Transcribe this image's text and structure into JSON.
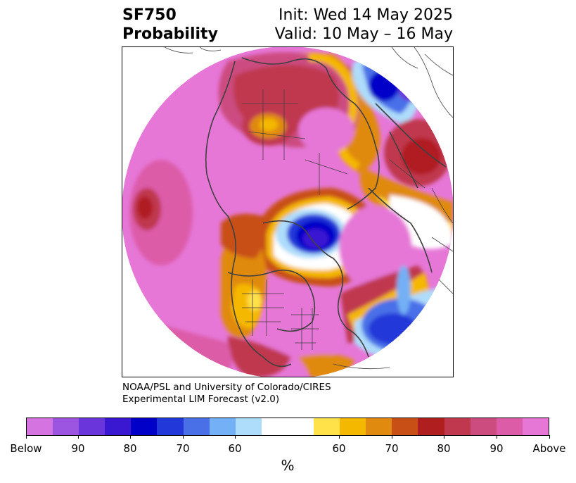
{
  "title": {
    "left_line1": "SF750",
    "left_line2": "Probability",
    "right_line1": "Init: Wed 14 May 2025",
    "right_line2": "Valid: 10 May – 16 May"
  },
  "credit": {
    "line1": "NOAA/PSL and University of Colorado/CIRES",
    "line2": "Experimental LIM Forecast (v2.0)"
  },
  "colorbar": {
    "unit_label": "%",
    "colors": [
      "#d574e0",
      "#9b55e0",
      "#6a35da",
      "#3a18d2",
      "#0000c8",
      "#2338d8",
      "#4a70e8",
      "#73b0f5",
      "#aedcfb",
      "#ffffff",
      "#ffffff",
      "#ffe14a",
      "#f5b800",
      "#e08a10",
      "#c85016",
      "#b01e20",
      "#c0384e",
      "#cc4c80",
      "#dc5ca8",
      "#e677d7"
    ],
    "ticks": [
      {
        "label": "Below"
      },
      {
        "label": "90"
      },
      {
        "label": "80"
      },
      {
        "label": "70"
      },
      {
        "label": "60"
      },
      {
        "label": "60"
      },
      {
        "label": "70"
      },
      {
        "label": "80"
      },
      {
        "label": "90"
      },
      {
        "label": "Above"
      }
    ]
  },
  "map": {
    "projection": "north-polar-stereographic",
    "colors": {
      "above_high": "#e677d7",
      "above_90": "#dc5ca8",
      "above_85": "#cc4c80",
      "above_80": "#c0384e",
      "above_75": "#b01e20",
      "above_70": "#c85016",
      "above_65": "#e08a10",
      "above_60": "#f5b800",
      "above_55": "#ffe14a",
      "below_55": "#aedcfb",
      "below_60": "#73b0f5",
      "below_65": "#4a70e8",
      "below_70": "#2338d8",
      "below_75": "#0000c8",
      "below_80": "#3a18d2",
      "below_85": "#6a35da",
      "border": "#404040"
    }
  }
}
